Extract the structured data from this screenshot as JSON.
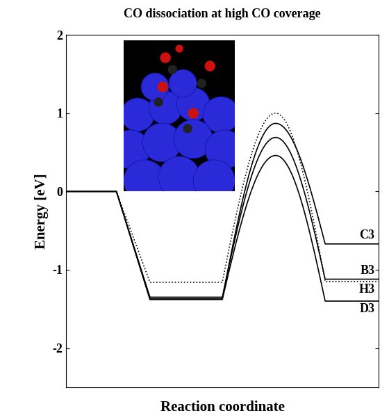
{
  "chart_data": {
    "type": "line",
    "title": "CO dissociation at high CO coverage",
    "x_label": "Reaction coordinate",
    "y_label": "Energy [eV]",
    "categories": [
      null,
      null,
      null,
      null
    ],
    "ylim": [
      -2.5,
      2
    ],
    "yticks": [
      -2,
      -1,
      0,
      1,
      2
    ],
    "tick_labels": "y",
    "series": [
      {
        "name": "C3",
        "color": "#000000",
        "line_style": "solid",
        "values": [
          0,
          -1.37,
          0.87,
          -0.67
        ]
      },
      {
        "name": "B3",
        "color": "#000000",
        "line_style": "solid",
        "values": [
          0,
          -1.35,
          0.69,
          -1.12
        ]
      },
      {
        "name": "H3",
        "color": "#000000",
        "line_style": "dotted",
        "values": [
          0,
          -1.16,
          1.0,
          -1.15
        ]
      },
      {
        "name": "D3",
        "color": "#000000",
        "line_style": "solid",
        "values": [
          0,
          -1.38,
          0.46,
          -1.4
        ]
      }
    ]
  }
}
